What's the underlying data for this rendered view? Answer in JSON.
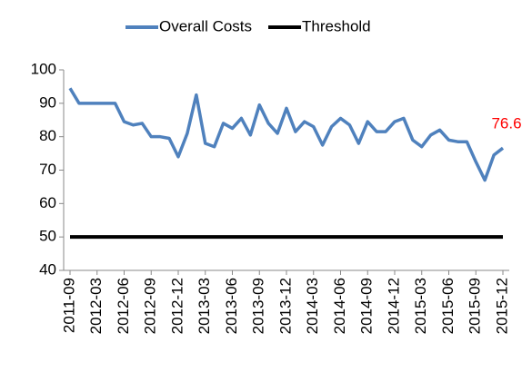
{
  "chart_data": {
    "type": "line",
    "categories": [
      "2011-09",
      null,
      null,
      "2012-03",
      null,
      null,
      "2012-06",
      null,
      null,
      "2012-09",
      null,
      null,
      "2012-12",
      null,
      null,
      "2013-03",
      null,
      null,
      "2013-06",
      null,
      null,
      "2013-09",
      null,
      null,
      "2013-12",
      null,
      null,
      "2014-03",
      null,
      null,
      "2014-06",
      null,
      null,
      "2014-09",
      null,
      null,
      "2014-12",
      null,
      null,
      "2015-03",
      null,
      null,
      "2015-06",
      null,
      null,
      "2015-09",
      null,
      null,
      "2015-12"
    ],
    "series": [
      {
        "name": "Overall Costs",
        "color": "#4f81bd",
        "values": [
          94.5,
          90,
          90,
          90,
          90,
          90,
          84.5,
          83.5,
          84,
          80,
          80,
          79.5,
          74,
          81,
          92.5,
          78,
          77,
          84,
          82.5,
          85.5,
          80.5,
          89.5,
          84,
          81,
          88.5,
          81.5,
          84.5,
          83,
          77.5,
          83,
          85.5,
          83.5,
          78,
          84.5,
          81.5,
          81.5,
          84.5,
          85.5,
          79,
          77,
          80.5,
          82,
          79,
          78.5,
          78.5,
          72.5,
          67,
          74.5,
          76.6
        ]
      },
      {
        "name": "Threshold",
        "color": "#000000",
        "values": [
          50,
          50,
          50,
          50,
          50,
          50,
          50,
          50,
          50,
          50,
          50,
          50,
          50,
          50,
          50,
          50,
          50,
          50,
          50,
          50,
          50,
          50,
          50,
          50,
          50,
          50,
          50,
          50,
          50,
          50,
          50,
          50,
          50,
          50,
          50,
          50,
          50,
          50,
          50,
          50,
          50,
          50,
          50,
          50,
          50,
          50,
          50,
          50,
          50
        ]
      }
    ],
    "annotation_color": "#ff0000",
    "ylim": [
      40,
      100
    ],
    "yticks": [
      40,
      50,
      60,
      70,
      80,
      90,
      100
    ],
    "legend": "top"
  }
}
